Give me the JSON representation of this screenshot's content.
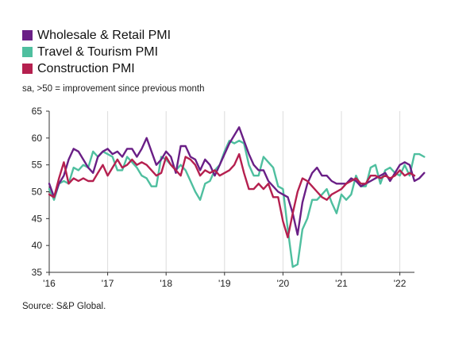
{
  "legend": [
    {
      "name": "Wholesale & Retail PMI",
      "color": "#6a1f86"
    },
    {
      "name": "Travel & Tourism PMI",
      "color": "#4fbf9f"
    },
    {
      "name": "Construction PMI",
      "color": "#b5204f"
    }
  ],
  "note": "sa, >50 = improvement since previous month",
  "source": "Source: S&P Global.",
  "chart_data": {
    "type": "line",
    "x_start": "2016-01",
    "x_frequency": "monthly",
    "x_ticks": [
      "'16",
      "'17",
      "'18",
      "'19",
      "'20",
      "'21",
      "'22"
    ],
    "y_ticks": [
      35,
      40,
      45,
      50,
      55,
      60,
      65
    ],
    "ylim": [
      35,
      65
    ],
    "grid": "vertical gridlines at year boundaries",
    "series": [
      {
        "name": "Wholesale & Retail PMI",
        "color": "#6a1f86",
        "values": [
          51.5,
          49,
          51.5,
          53,
          56,
          58,
          57.5,
          56,
          54.5,
          53.5,
          56.5,
          57.5,
          58,
          57,
          57.5,
          56.5,
          58,
          58,
          56.5,
          58,
          60,
          57.5,
          55,
          56,
          57.5,
          56.5,
          53.5,
          58.5,
          58.5,
          56.5,
          56,
          54,
          56,
          55,
          53,
          55,
          57,
          59,
          60.5,
          62,
          59.5,
          57,
          55,
          54,
          54,
          52,
          51,
          50,
          49.5,
          49,
          46,
          42,
          48,
          51.5,
          53.5,
          54.5,
          53,
          53,
          52,
          51.5,
          51.5,
          51.5,
          52.5,
          52,
          51,
          51.5,
          52,
          52.5,
          53,
          53.5,
          52,
          53.5,
          55,
          55.5,
          55,
          52,
          52.5,
          53.5
        ]
      },
      {
        "name": "Travel & Tourism PMI",
        "color": "#4fbf9f",
        "values": [
          50.5,
          48.5,
          51.5,
          52,
          51.5,
          54.5,
          54,
          55,
          54.5,
          57.5,
          56.5,
          57.5,
          57,
          56.5,
          54,
          54,
          56.5,
          55.5,
          54.5,
          53,
          52.5,
          51,
          51,
          56.5,
          56,
          55,
          54,
          55,
          54,
          52,
          50,
          48.5,
          51.5,
          52,
          54,
          55,
          57.5,
          59.5,
          59,
          59.5,
          59,
          55,
          53,
          53,
          56.5,
          55.5,
          54.5,
          51,
          50.5,
          43,
          36,
          36.5,
          43,
          45,
          48.5,
          48.5,
          49.5,
          50.5,
          48,
          46,
          49.5,
          48.5,
          49.5,
          53,
          51,
          51,
          54.5,
          55,
          51.5,
          54,
          54.5,
          53.5,
          53,
          55,
          53,
          57,
          57,
          56.5
        ]
      },
      {
        "name": "Construction PMI",
        "color": "#b5204f",
        "values": [
          49.5,
          49,
          52.5,
          55.5,
          51.5,
          52.5,
          52,
          52.5,
          52,
          52,
          53.5,
          55,
          53,
          54.5,
          56,
          54.5,
          55,
          56,
          55,
          55.5,
          55,
          54,
          53,
          53.5,
          56.5,
          55,
          54,
          53,
          56.5,
          56,
          55,
          53,
          54,
          53.5,
          54,
          53,
          53.5,
          54,
          55,
          57,
          53.5,
          50.5,
          50.5,
          51.5,
          50.5,
          51.5,
          49,
          49,
          44.5,
          41.5,
          46,
          50,
          52.5,
          52,
          51,
          50,
          49,
          48.5,
          49.5,
          50,
          50.5,
          51.5,
          52,
          52.5,
          51.5,
          51.5,
          53,
          53,
          52.5,
          53,
          52.5,
          53,
          54,
          53,
          53.5,
          53
        ]
      }
    ]
  }
}
